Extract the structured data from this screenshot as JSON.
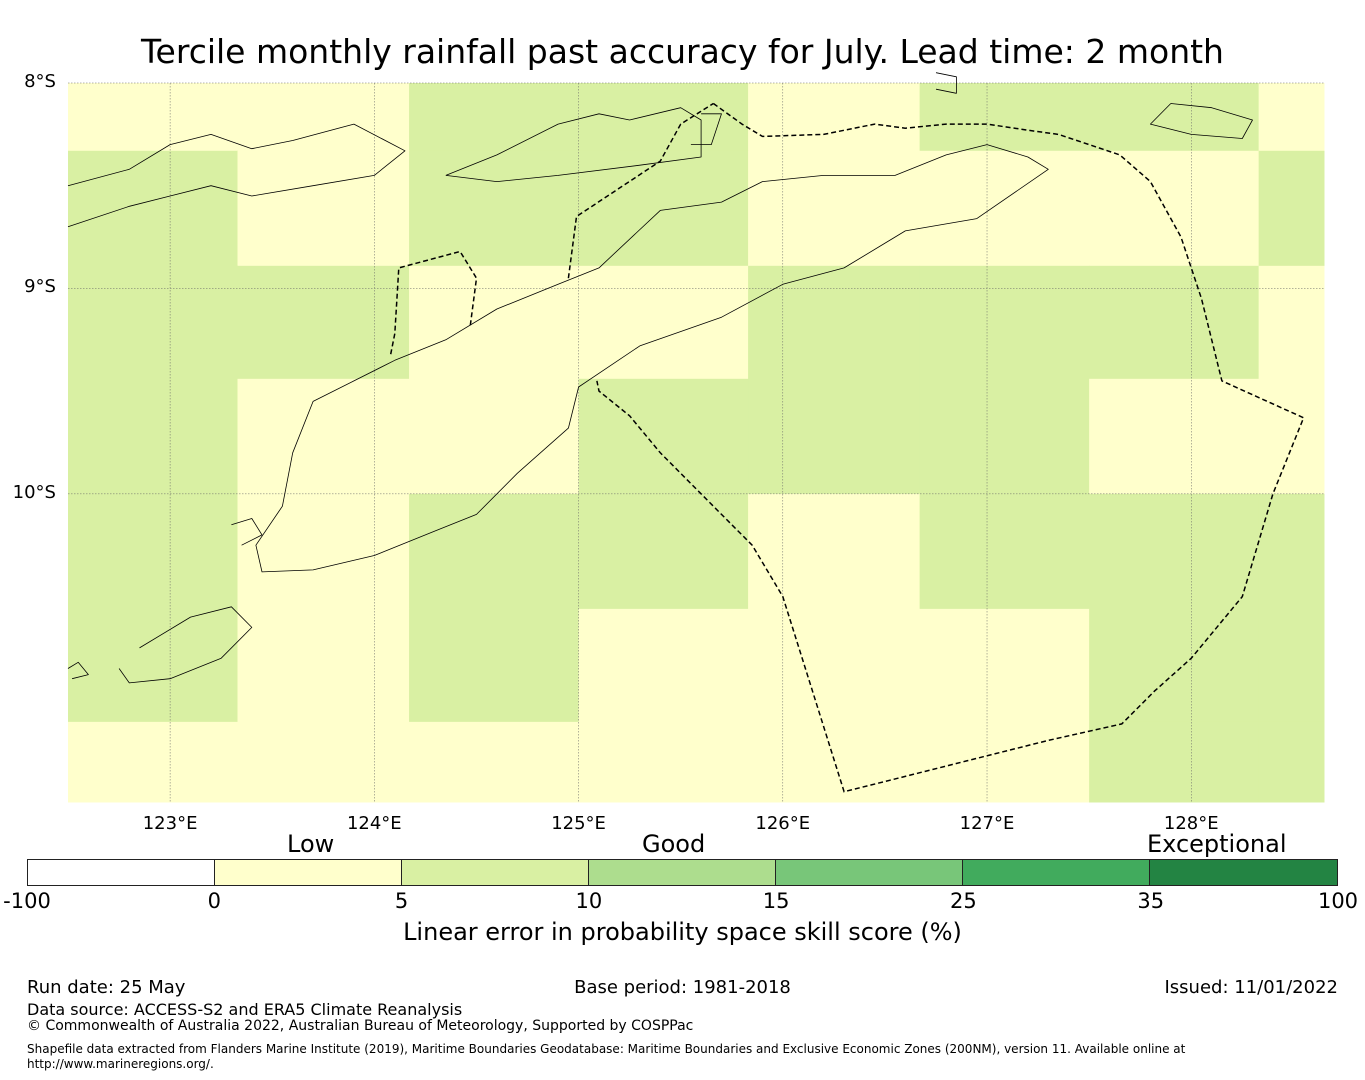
{
  "title": "Tercile monthly rainfall past accuracy for July. Lead time: 2 month",
  "map": {
    "lon_range": [
      122.5,
      128.65
    ],
    "lat_range": [
      -11.5,
      -8.0
    ],
    "lat_ticks": [
      {
        "lat": -8,
        "label": "8°S"
      },
      {
        "lat": -9,
        "label": "9°S"
      },
      {
        "lat": -10,
        "label": "10°S"
      }
    ],
    "lon_ticks": [
      {
        "lon": 123,
        "label": "123°E"
      },
      {
        "lon": 124,
        "label": "124°E"
      },
      {
        "lon": 125,
        "label": "125°E"
      },
      {
        "lon": 126,
        "label": "126°E"
      },
      {
        "lon": 127,
        "label": "127°E"
      },
      {
        "lon": 128,
        "label": "128°E"
      }
    ],
    "grid_lon_edges": [
      122.5,
      123.33,
      124.17,
      125.0,
      125.83,
      126.67,
      127.5,
      128.33,
      128.65
    ],
    "grid_lat_edges": [
      -8.0,
      -8.33,
      -8.89,
      -9.44,
      -10.0,
      -10.56,
      -11.11,
      -11.5
    ],
    "grid_categories": [
      [
        1,
        1,
        2,
        2,
        1,
        2,
        2,
        1
      ],
      [
        2,
        1,
        2,
        2,
        1,
        1,
        1,
        2
      ],
      [
        2,
        2,
        1,
        1,
        2,
        2,
        2,
        1
      ],
      [
        2,
        1,
        1,
        2,
        2,
        2,
        1,
        1
      ],
      [
        2,
        1,
        2,
        2,
        1,
        2,
        2,
        2
      ],
      [
        2,
        1,
        2,
        1,
        1,
        1,
        2,
        2
      ],
      [
        1,
        1,
        1,
        1,
        1,
        1,
        2,
        2
      ]
    ],
    "eez_boundary": [
      [
        125.66,
        -8.1
      ],
      [
        125.8,
        -8.2
      ],
      [
        125.9,
        -8.26
      ],
      [
        126.2,
        -8.25
      ],
      [
        126.45,
        -8.2
      ],
      [
        126.6,
        -8.22
      ],
      [
        126.8,
        -8.2
      ],
      [
        127.0,
        -8.2
      ],
      [
        127.2,
        -8.23
      ],
      [
        127.35,
        -8.25
      ],
      [
        127.5,
        -8.3
      ],
      [
        127.65,
        -8.35
      ],
      [
        127.8,
        -8.48
      ],
      [
        127.95,
        -8.75
      ],
      [
        128.05,
        -9.05
      ],
      [
        128.15,
        -9.45
      ],
      [
        128.55,
        -9.63
      ],
      [
        128.4,
        -10.0
      ],
      [
        128.25,
        -10.5
      ],
      [
        128.0,
        -10.8
      ],
      [
        127.82,
        -10.96
      ],
      [
        127.66,
        -11.12
      ],
      [
        127.3,
        -11.2
      ],
      [
        126.9,
        -11.3
      ],
      [
        126.5,
        -11.4
      ],
      [
        126.3,
        -11.45
      ],
      [
        126.0,
        -10.5
      ],
      [
        125.85,
        -10.25
      ],
      [
        125.7,
        -10.1
      ],
      [
        125.55,
        -9.95
      ],
      [
        125.4,
        -9.8
      ],
      [
        125.25,
        -9.62
      ],
      [
        125.1,
        -9.5
      ],
      [
        125.09,
        -9.45
      ]
    ],
    "oecusse_boundary": [
      [
        124.08,
        -9.32
      ],
      [
        124.1,
        -9.22
      ],
      [
        124.12,
        -8.9
      ],
      [
        124.42,
        -8.82
      ],
      [
        124.5,
        -8.95
      ],
      [
        124.47,
        -9.18
      ]
    ],
    "timor_north_boundary": [
      [
        124.95,
        -8.95
      ],
      [
        124.99,
        -8.65
      ],
      [
        125.4,
        -8.38
      ],
      [
        125.5,
        -8.2
      ],
      [
        125.66,
        -8.1
      ]
    ],
    "coast_timor": [
      [
        124.1,
        -9.35
      ],
      [
        124.35,
        -9.25
      ],
      [
        124.6,
        -9.1
      ],
      [
        124.9,
        -8.98
      ],
      [
        125.1,
        -8.9
      ],
      [
        125.4,
        -8.62
      ],
      [
        125.7,
        -8.58
      ],
      [
        125.9,
        -8.48
      ],
      [
        126.2,
        -8.45
      ],
      [
        126.55,
        -8.45
      ],
      [
        126.8,
        -8.35
      ],
      [
        127.0,
        -8.3
      ],
      [
        127.2,
        -8.36
      ],
      [
        127.3,
        -8.42
      ],
      [
        126.95,
        -8.66
      ],
      [
        126.6,
        -8.72
      ],
      [
        126.3,
        -8.9
      ],
      [
        126.0,
        -8.98
      ],
      [
        125.7,
        -9.14
      ],
      [
        125.3,
        -9.28
      ],
      [
        125.0,
        -9.48
      ],
      [
        124.95,
        -9.68
      ],
      [
        124.7,
        -9.9
      ],
      [
        124.5,
        -10.1
      ],
      [
        124.3,
        -10.18
      ],
      [
        124.0,
        -10.3
      ],
      [
        123.7,
        -10.37
      ],
      [
        123.45,
        -10.38
      ],
      [
        123.42,
        -10.25
      ],
      [
        123.55,
        -10.06
      ],
      [
        123.6,
        -9.8
      ],
      [
        123.7,
        -9.55
      ],
      [
        123.9,
        -9.45
      ],
      [
        124.1,
        -9.35
      ]
    ],
    "coast_flores": [
      [
        122.5,
        -8.5
      ],
      [
        122.8,
        -8.42
      ],
      [
        123.0,
        -8.3
      ],
      [
        123.2,
        -8.25
      ],
      [
        123.4,
        -8.32
      ],
      [
        123.6,
        -8.28
      ],
      [
        123.9,
        -8.2
      ],
      [
        124.15,
        -8.33
      ],
      [
        124.0,
        -8.45
      ],
      [
        123.7,
        -8.5
      ],
      [
        123.4,
        -8.55
      ],
      [
        123.2,
        -8.5
      ],
      [
        123.0,
        -8.55
      ],
      [
        122.8,
        -8.6
      ],
      [
        122.5,
        -8.7
      ]
    ],
    "coast_alor": [
      [
        124.35,
        -8.45
      ],
      [
        124.6,
        -8.35
      ],
      [
        124.9,
        -8.2
      ],
      [
        125.1,
        -8.15
      ],
      [
        125.25,
        -8.18
      ],
      [
        125.5,
        -8.12
      ],
      [
        125.6,
        -8.18
      ],
      [
        125.6,
        -8.36
      ],
      [
        125.3,
        -8.4
      ],
      [
        124.9,
        -8.45
      ],
      [
        124.6,
        -8.48
      ],
      [
        124.35,
        -8.45
      ]
    ],
    "coast_wetar": [
      [
        126.75,
        -7.95
      ],
      [
        126.85,
        -7.97
      ],
      [
        126.85,
        -8.05
      ],
      [
        126.75,
        -8.03
      ]
    ],
    "coast_babar": [
      [
        127.9,
        -8.1
      ],
      [
        128.1,
        -8.12
      ],
      [
        128.3,
        -8.18
      ],
      [
        128.25,
        -8.27
      ],
      [
        128.0,
        -8.25
      ],
      [
        127.8,
        -8.2
      ],
      [
        127.9,
        -8.1
      ]
    ],
    "coast_kisar": [
      [
        125.6,
        -8.15
      ],
      [
        125.7,
        -8.15
      ],
      [
        125.65,
        -8.3
      ],
      [
        125.55,
        -8.3
      ]
    ],
    "coast_rote": [
      [
        122.85,
        -10.75
      ],
      [
        123.1,
        -10.6
      ],
      [
        123.3,
        -10.55
      ],
      [
        123.4,
        -10.65
      ],
      [
        123.25,
        -10.8
      ],
      [
        123.0,
        -10.9
      ],
      [
        122.8,
        -10.92
      ],
      [
        122.75,
        -10.85
      ]
    ],
    "coast_sawu": [
      [
        122.5,
        -10.85
      ],
      [
        122.55,
        -10.82
      ],
      [
        122.6,
        -10.88
      ],
      [
        122.52,
        -10.9
      ]
    ],
    "coast_semau": [
      [
        123.3,
        -10.15
      ],
      [
        123.4,
        -10.12
      ],
      [
        123.45,
        -10.2
      ],
      [
        123.35,
        -10.25
      ]
    ]
  },
  "legend": {
    "categories": [
      {
        "label": "Low"
      },
      {
        "label": "Good"
      },
      {
        "label": "Exceptional"
      }
    ],
    "ticks": [
      "-100",
      "0",
      "5",
      "10",
      "15",
      "25",
      "35",
      "100"
    ],
    "colors": [
      "#ffffff",
      "#ffffcc",
      "#d9f0a3",
      "#addd8e",
      "#78c679",
      "#41ab5d",
      "#238443"
    ],
    "label": "Linear error in probability space skill score (%)"
  },
  "footer": {
    "run_date": "Run date: 25 May",
    "base_period": "Base period: 1981-2018",
    "issued": "Issued: 11/01/2022",
    "data_source": "Data source: ACCESS-S2 and ERA5 Climate Reanalysis",
    "copyright": "© Commonwealth of Australia 2022, Australian Bureau of Meteorology, Supported by COSPPac",
    "shapefile_line1": "Shapefile data extracted from Flanders Marine Institute (2019), Maritime Boundaries Geodatabase: Maritime Boundaries and Exclusive Economic Zones (200NM), version 11. Available online at",
    "shapefile_line2": "http://www.marineregions.org/."
  }
}
